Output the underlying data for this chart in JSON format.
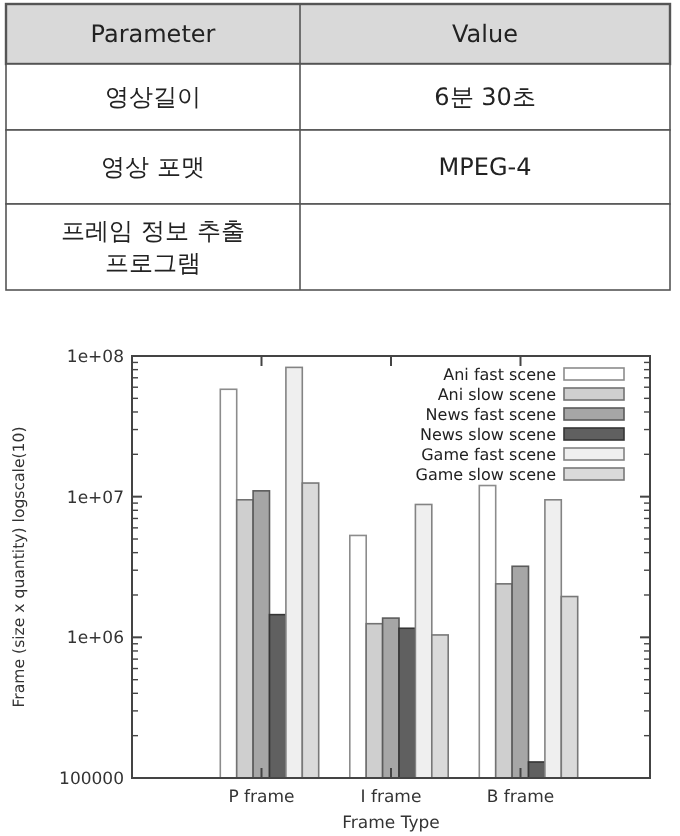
{
  "chart_data": [
    {
      "type": "other",
      "annotations": [
        "Parameter",
        "Value",
        "영상길이",
        "6분 30초",
        "영상 포맷",
        "MPEG-4",
        "프레임 정보 추출 프로그램"
      ]
    },
    {
      "type": "bar",
      "xlabel": "Frame Type",
      "ylabel": "Frame (size x quantity) logscale(10)",
      "categories": [
        "P frame",
        "I frame",
        "B frame"
      ],
      "log": true,
      "ylim": [
        100000,
        100000000
      ],
      "yticks": [
        {
          "value": 100000,
          "label": "100000"
        },
        {
          "value": 1000000,
          "label": "1e+06"
        },
        {
          "value": 10000000,
          "label": "1e+07"
        },
        {
          "value": 100000000,
          "label": "1e+08"
        }
      ],
      "grid": false,
      "legend": "top right",
      "series": [
        {
          "name": "Ani fast scene",
          "color": "#ffffff",
          "values": [
            58000000,
            5300000,
            12000000
          ]
        },
        {
          "name": "Ani slow scene",
          "color": "#cfcfcf",
          "values": [
            9500000,
            1250000,
            2400000
          ]
        },
        {
          "name": "News fast scene",
          "color": "#a6a6a6",
          "values": [
            11000000,
            1370000,
            3200000
          ]
        },
        {
          "name": "News slow scene",
          "color": "#606060",
          "values": [
            1450000,
            1160000,
            130000
          ]
        },
        {
          "name": "Game fast scene",
          "color": "#efefef",
          "values": [
            83000000,
            8800000,
            9500000
          ]
        },
        {
          "name": "Game slow scene",
          "color": "#dadada",
          "values": [
            12500000,
            1040000,
            1950000
          ]
        }
      ]
    }
  ]
}
